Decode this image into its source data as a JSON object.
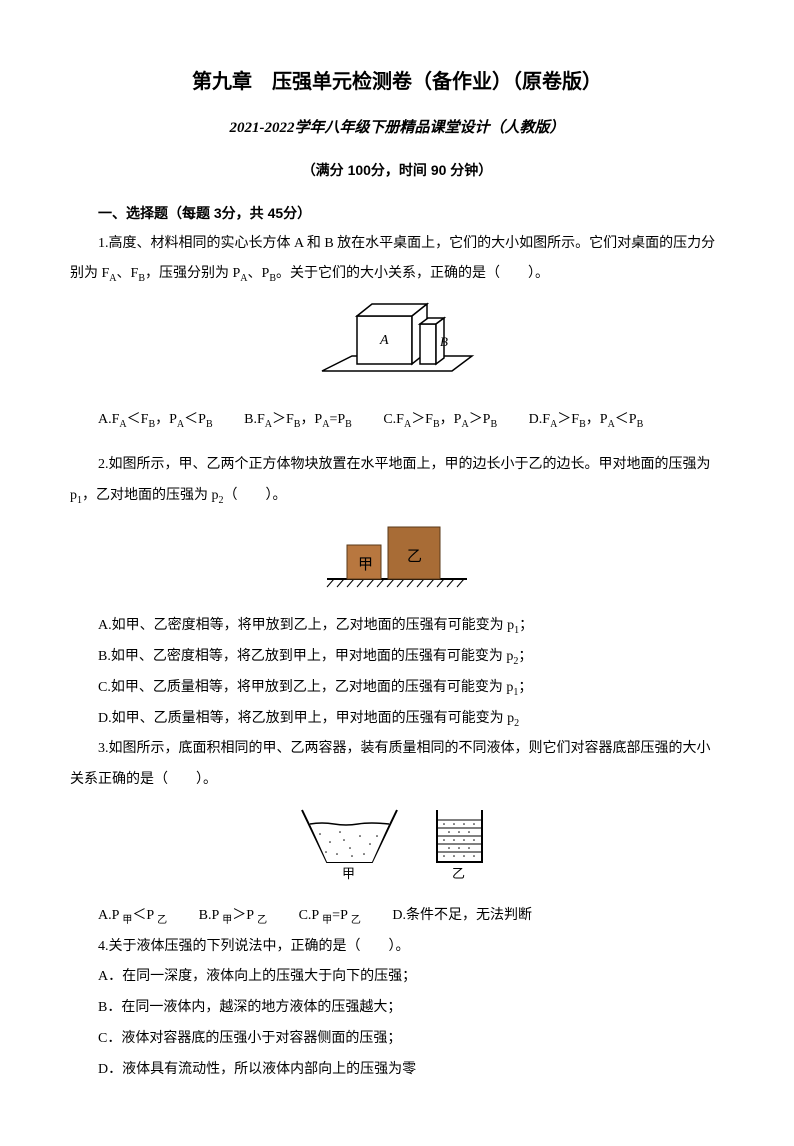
{
  "title": "第九章　压强单元检测卷（备作业）（原卷版）",
  "subtitle": "2021-2022学年八年级下册精品课堂设计（人教版）",
  "info": "（满分 100分，时间 90 分钟）",
  "section1": "一、选择题（每题 3分，共 45分）",
  "q1": {
    "stem": "1.高度、材料相同的实心长方体 A 和 B 放在水平桌面上，它们的大小如图所示。它们对桌面的压力分别为 F<sub>A</sub>、F<sub>B</sub>，压强分别为 P<sub>A</sub>、P<sub>B</sub>。关于它们的大小关系，正确的是（　　）。",
    "optA": "A.F<sub>A</sub>＜F<sub>B</sub>，P<sub>A</sub>＜P<sub>B</sub>",
    "optB": "B.F<sub>A</sub>＞F<sub>B</sub>，P<sub>A</sub>=P<sub>B</sub>",
    "optC": "C.F<sub>A</sub>＞F<sub>B</sub>，P<sub>A</sub>＞P<sub>B</sub>",
    "optD": "D.F<sub>A</sub>＞F<sub>B</sub>，P<sub>A</sub>＜P<sub>B</sub>"
  },
  "q2": {
    "stem": "2.如图所示，甲、乙两个正方体物块放置在水平地面上，甲的边长小于乙的边长。甲对地面的压强为 p<sub>1</sub>，乙对地面的压强为 p<sub>2</sub>（　　）。",
    "optA": "A.如甲、乙密度相等，将甲放到乙上，乙对地面的压强有可能变为 p<sub>1</sub>；",
    "optB": "B.如甲、乙密度相等，将乙放到甲上，甲对地面的压强有可能变为 p<sub>2</sub>；",
    "optC": "C.如甲、乙质量相等，将甲放到乙上，乙对地面的压强有可能变为 p<sub>1</sub>；",
    "optD": "D.如甲、乙质量相等，将乙放到甲上，甲对地面的压强有可能变为 p<sub>2</sub>"
  },
  "q3": {
    "stem": "3.如图所示，底面积相同的甲、乙两容器，装有质量相同的不同液体，则它们对容器底部压强的大小关系正确的是（　　）。",
    "optA": "A.P <sub>甲</sub>＜P <sub>乙</sub>",
    "optB": "B.P <sub>甲</sub>＞P <sub>乙</sub>",
    "optC": "C.P <sub>甲</sub>=P <sub>乙</sub>",
    "optD": "D.条件不足，无法判断"
  },
  "q4": {
    "stem": "4.关于液体压强的下列说法中，正确的是（　　）。",
    "optA": "A．在同一深度，液体向上的压强大于向下的压强；",
    "optB": "B．在同一液体内，越深的地方液体的压强越大；",
    "optC": "C．液体对容器底的压强小于对容器侧面的压强；",
    "optD": "D．液体具有流动性，所以液体内部向上的压强为零"
  },
  "fig1": {
    "labelA": "A",
    "labelB": "B",
    "colors": {
      "fill": "#ffffff",
      "stroke": "#000000",
      "table": "#ffffff"
    }
  },
  "fig2": {
    "labelJia": "甲",
    "labelYi": "乙",
    "colors": {
      "jia": "#b8773f",
      "yi": "#a86c36",
      "ground": "#000000"
    }
  },
  "fig3": {
    "labelJia": "甲",
    "labelYi": "乙",
    "colors": {
      "stroke": "#000000",
      "fill1": "#ffffff",
      "fill2": "#ffffff"
    }
  }
}
